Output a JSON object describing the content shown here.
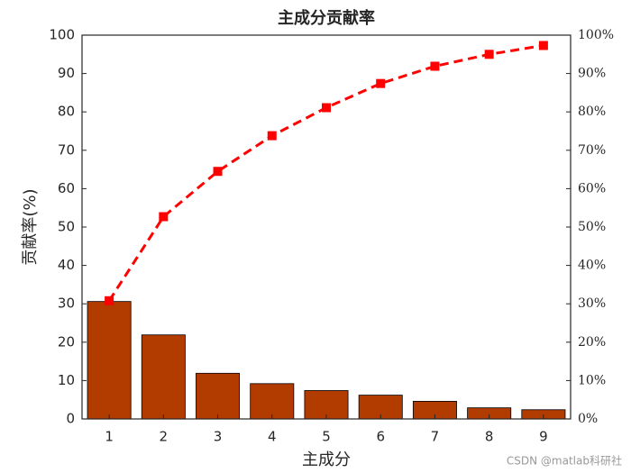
{
  "chart_data": {
    "type": "bar",
    "title": "主成分贡献率",
    "x_label": "主成分",
    "y_label": "贡献率(%)",
    "watermark": "CSDN @matlab科研社",
    "x": [
      1,
      2,
      3,
      4,
      5,
      6,
      7,
      8,
      9
    ],
    "xlim": [
      0.5,
      9.5
    ],
    "xticks": [
      1,
      2,
      3,
      4,
      5,
      6,
      7,
      8,
      9
    ],
    "ylim": [
      0,
      100
    ],
    "yticks": [
      0,
      10,
      20,
      30,
      40,
      50,
      60,
      70,
      80,
      90,
      100
    ],
    "y2lim": [
      0,
      100
    ],
    "y2ticks": [
      {
        "value": 0,
        "label": "0%"
      },
      {
        "value": 10,
        "label": "10%"
      },
      {
        "value": 20,
        "label": "20%"
      },
      {
        "value": 30,
        "label": "30%"
      },
      {
        "value": 40,
        "label": "40%"
      },
      {
        "value": 50,
        "label": "50%"
      },
      {
        "value": 60,
        "label": "60%"
      },
      {
        "value": 70,
        "label": "70%"
      },
      {
        "value": 80,
        "label": "80%"
      },
      {
        "value": 90,
        "label": "90%"
      },
      {
        "value": 100,
        "label": "100%"
      }
    ],
    "series": [
      {
        "type": "bar",
        "color": "#b23b00",
        "values": [
          30.6,
          21.9,
          11.9,
          9.2,
          7.4,
          6.2,
          4.6,
          2.9,
          2.4
        ]
      },
      {
        "type": "line",
        "axis": "y2",
        "color": "#ff0000",
        "values": [
          30.8,
          52.7,
          64.5,
          73.8,
          81.1,
          87.4,
          91.9,
          95.0,
          97.3
        ]
      }
    ]
  }
}
